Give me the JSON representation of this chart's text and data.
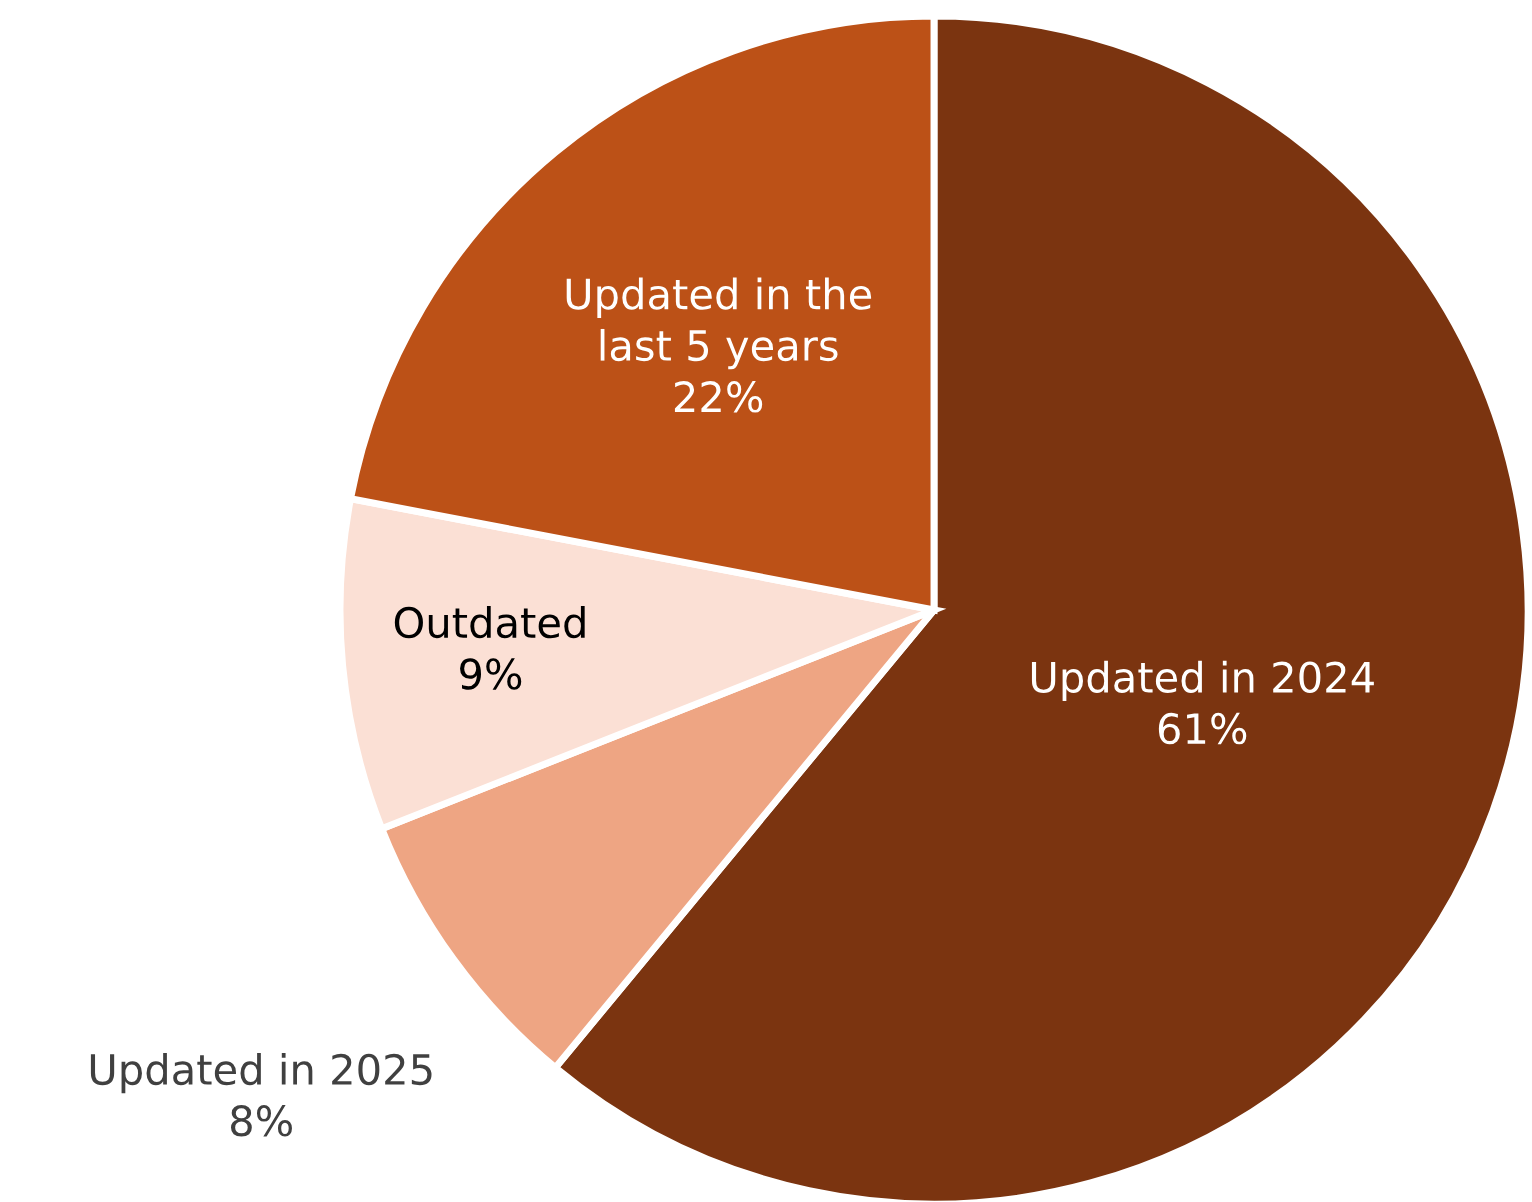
{
  "chart_data": {
    "type": "pie",
    "categories": [
      "Updated in 2024",
      "Updated in 2025",
      "Outdated",
      "Updated in the\nlast 5 years"
    ],
    "values": [
      61,
      8,
      9,
      22
    ],
    "colors": [
      "#7b3410",
      "#eea583",
      "#fbe0d5",
      "#bc5117"
    ],
    "value_labels": [
      "61%",
      "8%",
      "9%",
      "22%"
    ]
  }
}
